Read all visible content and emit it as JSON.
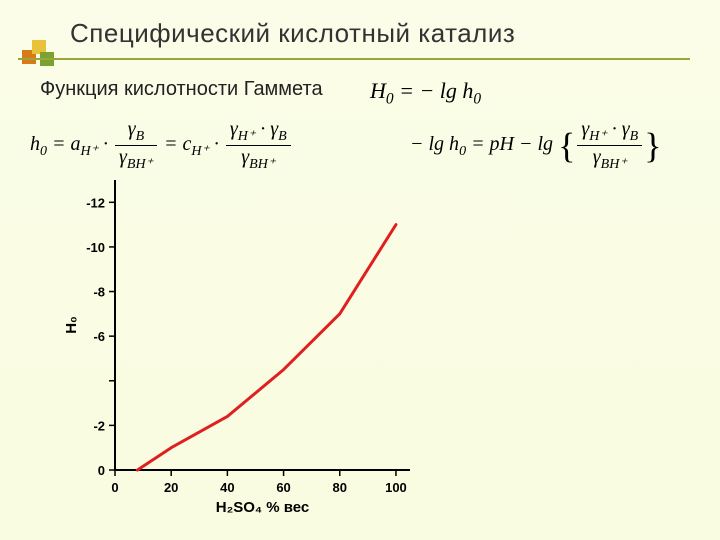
{
  "slide": {
    "title": "Специфический кислотный катализ",
    "subtitle": "Функция кислотности Гаммета",
    "logo_colors": [
      "#d97a1a",
      "#e8c33a",
      "#7aa22f"
    ],
    "underline_color": "#9aa53a",
    "background_color": "#fbfde8"
  },
  "formulas": {
    "f1_html": "H<sub>0</sub> = − lg h<sub>0</sub>",
    "f2_html": "h<sub>0</sub> = a<sub>H⁺</sub> · <span class='frac'><span class='num'>γ<sub>B</sub></span><span class='den'>γ<sub>BH⁺</sub></span></span> = c<sub>H⁺</sub> · <span class='frac'><span class='num'>γ<sub>H⁺</sub> · γ<sub>B</sub></span><span class='den'>γ<sub>BH⁺</sub></span></span>",
    "f3_html": "− lg h<sub>0</sub> = pH − lg <span class='big-brace'>{</span><span class='frac'><span class='num'>γ<sub>H⁺</sub> · γ<sub>B</sub></span><span class='den'>γ<sub>BH⁺</sub></span></span><span class='big-brace'>}</span>"
  },
  "chart": {
    "type": "line",
    "x_label": "H₂SO₄ % вес",
    "y_label": "H₀",
    "x_ticks": [
      0,
      20,
      40,
      60,
      80,
      100
    ],
    "y_ticks": [
      0,
      -2,
      -4,
      -6,
      -8,
      -10,
      -12
    ],
    "y_tick_labels": [
      "0",
      "-2",
      "",
      "-6",
      "-8",
      "-10",
      "-12"
    ],
    "xlim": [
      0,
      105
    ],
    "ylim": [
      0,
      -13
    ],
    "series": {
      "x": [
        8,
        20,
        40,
        60,
        80,
        90,
        100
      ],
      "y": [
        0,
        -1.0,
        -2.4,
        -4.5,
        -7.0,
        -9.0,
        -11.0
      ],
      "color": "#e02020",
      "line_width": 3
    },
    "axis_color": "#000000",
    "tick_fontsize": 13,
    "tick_fontweight": "bold",
    "label_fontsize": 15,
    "label_fontweight": "bold",
    "background_color": "transparent"
  }
}
